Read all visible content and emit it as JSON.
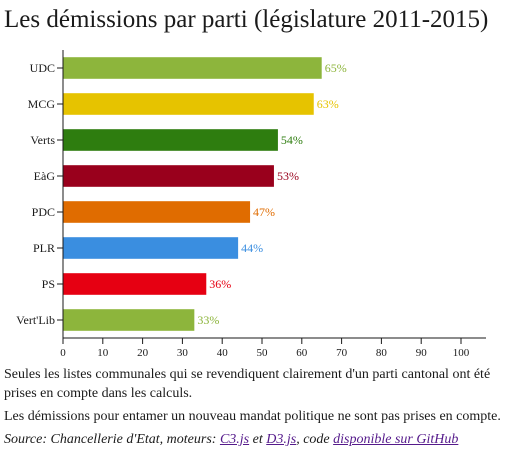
{
  "page": {
    "title": "Les démissions par parti (législature 2011-2015)",
    "note_1": "Seules les listes communales qui se revendiquent clairement d'un parti cantonal ont été prises en compte dans les calculs.",
    "note_2": "Les démissions pour entamer un nouveau mandat politique ne sont pas prises en compte.",
    "source": {
      "prefix": "Source: Chancellerie d'Etat, moteurs: ",
      "c3_label": "C3.js",
      "and_text": " et ",
      "d3_label": "D3.js",
      "code_text": ", code ",
      "github_label": "disponible sur GitHub"
    }
  },
  "chart_data": {
    "type": "bar",
    "orientation": "horizontal",
    "title": "Les démissions par parti (législature 2011-2015)",
    "xlabel": "",
    "ylabel": "",
    "xlim": [
      0,
      100
    ],
    "xticks": [
      0,
      10,
      20,
      30,
      40,
      50,
      60,
      70,
      80,
      90,
      100
    ],
    "grid": false,
    "legend": "none",
    "categories": [
      "UDC",
      "MCG",
      "Verts",
      "EàG",
      "PDC",
      "PLR",
      "PS",
      "Vert'Lib"
    ],
    "values": [
      65,
      63,
      54,
      53,
      47,
      44,
      36,
      33
    ],
    "value_labels": [
      "65%",
      "63%",
      "54%",
      "53%",
      "47%",
      "44%",
      "36%",
      "33%"
    ],
    "colors": [
      "#8db53c",
      "#e6c300",
      "#2e7d0f",
      "#99001c",
      "#e06c00",
      "#3a8ee0",
      "#e60012",
      "#8db53c"
    ]
  }
}
